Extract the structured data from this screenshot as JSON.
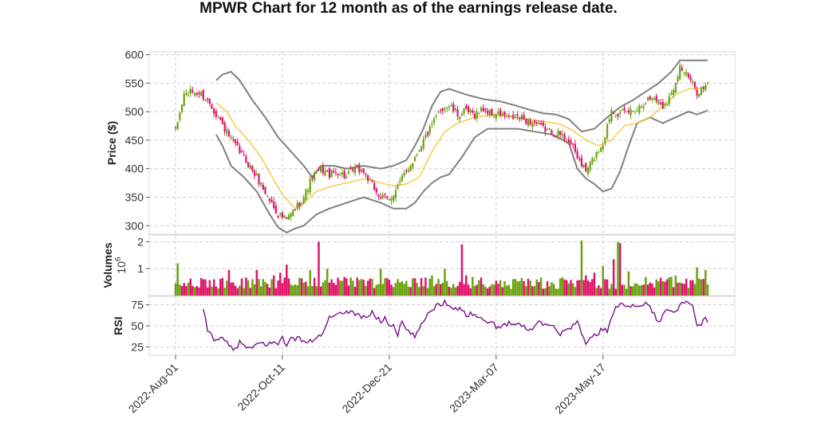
{
  "title": "MPWR Chart for 12 month as of the earnings release date.",
  "colors": {
    "up": "#6aa30f",
    "down": "#e0136b",
    "bollinger": "#808080",
    "sma": "#f4c430",
    "rsi": "#7a0f8c",
    "grid": "#cfcfcf"
  },
  "chart_data": {
    "type": "candlestick",
    "title": "MPWR Chart for 12 month as of the earnings release date.",
    "x_tick_labels": [
      "2022-Aug-01",
      "2022-Oct-11",
      "2022-Dec-21",
      "2023-Mar-07",
      "2023-May-17"
    ],
    "x_tick_indices": [
      0,
      50,
      100,
      150,
      200
    ],
    "num_bars": 250,
    "panels": {
      "price": {
        "ylabel": "Price ($)",
        "ylim": [
          285,
          605
        ],
        "yticks": [
          300,
          350,
          400,
          450,
          500,
          550,
          600
        ],
        "close_anchors": [
          [
            0,
            465
          ],
          [
            4,
            530
          ],
          [
            8,
            535
          ],
          [
            12,
            530
          ],
          [
            16,
            515
          ],
          [
            20,
            490
          ],
          [
            26,
            450
          ],
          [
            32,
            420
          ],
          [
            38,
            385
          ],
          [
            44,
            345
          ],
          [
            48,
            320
          ],
          [
            52,
            310
          ],
          [
            56,
            330
          ],
          [
            60,
            350
          ],
          [
            64,
            385
          ],
          [
            68,
            400
          ],
          [
            72,
            390
          ],
          [
            76,
            395
          ],
          [
            80,
            385
          ],
          [
            84,
            400
          ],
          [
            88,
            395
          ],
          [
            92,
            370
          ],
          [
            96,
            350
          ],
          [
            100,
            345
          ],
          [
            104,
            370
          ],
          [
            108,
            395
          ],
          [
            112,
            420
          ],
          [
            116,
            450
          ],
          [
            120,
            475
          ],
          [
            124,
            505
          ],
          [
            128,
            510
          ],
          [
            132,
            495
          ],
          [
            136,
            500
          ],
          [
            140,
            495
          ],
          [
            144,
            505
          ],
          [
            148,
            495
          ],
          [
            152,
            495
          ],
          [
            156,
            488
          ],
          [
            160,
            490
          ],
          [
            164,
            485
          ],
          [
            168,
            480
          ],
          [
            172,
            470
          ],
          [
            176,
            465
          ],
          [
            180,
            460
          ],
          [
            184,
            450
          ],
          [
            188,
            420
          ],
          [
            192,
            395
          ],
          [
            196,
            420
          ],
          [
            200,
            445
          ],
          [
            204,
            505
          ],
          [
            208,
            495
          ],
          [
            212,
            500
          ],
          [
            216,
            505
          ],
          [
            220,
            520
          ],
          [
            224,
            525
          ],
          [
            228,
            510
          ],
          [
            232,
            530
          ],
          [
            236,
            580
          ],
          [
            240,
            560
          ],
          [
            244,
            535
          ],
          [
            249,
            545
          ]
        ],
        "bollinger_upper": [
          [
            19,
            555
          ],
          [
            22,
            565
          ],
          [
            26,
            570
          ],
          [
            30,
            555
          ],
          [
            36,
            520
          ],
          [
            42,
            490
          ],
          [
            48,
            455
          ],
          [
            54,
            430
          ],
          [
            60,
            405
          ],
          [
            64,
            385
          ],
          [
            68,
            405
          ],
          [
            74,
            405
          ],
          [
            80,
            400
          ],
          [
            88,
            405
          ],
          [
            96,
            400
          ],
          [
            102,
            405
          ],
          [
            108,
            415
          ],
          [
            112,
            440
          ],
          [
            116,
            470
          ],
          [
            120,
            510
          ],
          [
            124,
            535
          ],
          [
            128,
            540
          ],
          [
            136,
            530
          ],
          [
            144,
            522
          ],
          [
            152,
            518
          ],
          [
            158,
            512
          ],
          [
            166,
            503
          ],
          [
            172,
            497
          ],
          [
            178,
            495
          ],
          [
            184,
            487
          ],
          [
            190,
            465
          ],
          [
            196,
            470
          ],
          [
            202,
            490
          ],
          [
            208,
            508
          ],
          [
            214,
            520
          ],
          [
            220,
            535
          ],
          [
            226,
            550
          ],
          [
            232,
            570
          ],
          [
            236,
            590
          ],
          [
            240,
            590
          ],
          [
            244,
            590
          ],
          [
            249,
            590
          ]
        ],
        "bollinger_lower": [
          [
            19,
            460
          ],
          [
            22,
            440
          ],
          [
            26,
            405
          ],
          [
            32,
            385
          ],
          [
            38,
            360
          ],
          [
            44,
            320
          ],
          [
            48,
            297
          ],
          [
            52,
            288
          ],
          [
            56,
            295
          ],
          [
            60,
            300
          ],
          [
            66,
            320
          ],
          [
            72,
            330
          ],
          [
            80,
            340
          ],
          [
            88,
            350
          ],
          [
            96,
            340
          ],
          [
            102,
            330
          ],
          [
            108,
            330
          ],
          [
            112,
            340
          ],
          [
            116,
            360
          ],
          [
            120,
            375
          ],
          [
            124,
            385
          ],
          [
            128,
            390
          ],
          [
            134,
            420
          ],
          [
            140,
            455
          ],
          [
            146,
            470
          ],
          [
            152,
            470
          ],
          [
            160,
            470
          ],
          [
            168,
            465
          ],
          [
            176,
            460
          ],
          [
            184,
            445
          ],
          [
            188,
            400
          ],
          [
            192,
            383
          ],
          [
            196,
            373
          ],
          [
            200,
            360
          ],
          [
            204,
            365
          ],
          [
            208,
            395
          ],
          [
            212,
            440
          ],
          [
            216,
            480
          ],
          [
            222,
            490
          ],
          [
            228,
            480
          ],
          [
            234,
            490
          ],
          [
            240,
            500
          ],
          [
            244,
            495
          ],
          [
            249,
            502
          ]
        ],
        "sma20": [
          [
            19,
            515
          ],
          [
            24,
            500
          ],
          [
            28,
            475
          ],
          [
            34,
            450
          ],
          [
            40,
            420
          ],
          [
            46,
            380
          ],
          [
            50,
            355
          ],
          [
            56,
            330
          ],
          [
            60,
            340
          ],
          [
            66,
            360
          ],
          [
            72,
            368
          ],
          [
            80,
            375
          ],
          [
            88,
            382
          ],
          [
            96,
            375
          ],
          [
            102,
            370
          ],
          [
            108,
            373
          ],
          [
            114,
            385
          ],
          [
            120,
            430
          ],
          [
            126,
            465
          ],
          [
            132,
            480
          ],
          [
            140,
            490
          ],
          [
            148,
            495
          ],
          [
            156,
            492
          ],
          [
            164,
            487
          ],
          [
            172,
            483
          ],
          [
            180,
            478
          ],
          [
            186,
            467
          ],
          [
            192,
            450
          ],
          [
            198,
            440
          ],
          [
            204,
            450
          ],
          [
            210,
            475
          ],
          [
            216,
            480
          ],
          [
            222,
            490
          ],
          [
            228,
            510
          ],
          [
            234,
            530
          ],
          [
            240,
            540
          ],
          [
            244,
            540
          ],
          [
            249,
            545
          ]
        ]
      },
      "volume": {
        "ylabel": "Volumes",
        "yunit": "10^6",
        "ylim": [
          0,
          2.25
        ],
        "yticks": [
          1,
          2
        ],
        "baseline": 0.25,
        "spikes": [
          [
            1,
            1.2
          ],
          [
            25,
            0.95
          ],
          [
            38,
            0.95
          ],
          [
            46,
            0.75
          ],
          [
            49,
            0.85
          ],
          [
            52,
            1.15
          ],
          [
            63,
            0.95
          ],
          [
            67,
            2.0
          ],
          [
            71,
            1.0
          ],
          [
            78,
            0.55
          ],
          [
            90,
            0.55
          ],
          [
            96,
            1.0
          ],
          [
            98,
            0.65
          ],
          [
            120,
            0.75
          ],
          [
            126,
            1.0
          ],
          [
            134,
            1.9
          ],
          [
            136,
            0.75
          ],
          [
            150,
            0.55
          ],
          [
            190,
            2.05
          ],
          [
            192,
            0.75
          ],
          [
            196,
            0.85
          ],
          [
            200,
            1.1
          ],
          [
            205,
            1.35
          ],
          [
            207,
            2.0
          ],
          [
            208,
            1.95
          ],
          [
            212,
            0.9
          ],
          [
            225,
            0.6
          ],
          [
            234,
            0.75
          ],
          [
            244,
            1.05
          ],
          [
            246,
            0.6
          ],
          [
            248,
            0.95
          ]
        ]
      },
      "rsi": {
        "ylabel": "RSI",
        "ylim": [
          15,
          85
        ],
        "yticks": [
          25,
          50,
          75
        ],
        "anchors": [
          [
            13,
            68
          ],
          [
            15,
            45
          ],
          [
            18,
            35
          ],
          [
            21,
            35
          ],
          [
            24,
            30
          ],
          [
            27,
            20
          ],
          [
            30,
            30
          ],
          [
            33,
            25
          ],
          [
            36,
            22
          ],
          [
            39,
            30
          ],
          [
            42,
            28
          ],
          [
            45,
            30
          ],
          [
            48,
            28
          ],
          [
            50,
            40
          ],
          [
            52,
            25
          ],
          [
            54,
            35
          ],
          [
            58,
            35
          ],
          [
            62,
            30
          ],
          [
            66,
            35
          ],
          [
            70,
            45
          ],
          [
            72,
            60
          ],
          [
            76,
            62
          ],
          [
            80,
            68
          ],
          [
            84,
            65
          ],
          [
            88,
            60
          ],
          [
            92,
            65
          ],
          [
            96,
            55
          ],
          [
            98,
            60
          ],
          [
            100,
            50
          ],
          [
            102,
            52
          ],
          [
            104,
            40
          ],
          [
            106,
            55
          ],
          [
            108,
            45
          ],
          [
            110,
            40
          ],
          [
            112,
            38
          ],
          [
            114,
            45
          ],
          [
            118,
            65
          ],
          [
            122,
            74
          ],
          [
            126,
            78
          ],
          [
            130,
            72
          ],
          [
            134,
            70
          ],
          [
            136,
            62
          ],
          [
            140,
            65
          ],
          [
            144,
            58
          ],
          [
            146,
            52
          ],
          [
            148,
            58
          ],
          [
            150,
            45
          ],
          [
            154,
            52
          ],
          [
            158,
            55
          ],
          [
            162,
            50
          ],
          [
            166,
            45
          ],
          [
            170,
            55
          ],
          [
            174,
            52
          ],
          [
            178,
            48
          ],
          [
            180,
            40
          ],
          [
            184,
            47
          ],
          [
            188,
            55
          ],
          [
            190,
            40
          ],
          [
            192,
            30
          ],
          [
            196,
            38
          ],
          [
            200,
            47
          ],
          [
            202,
            45
          ],
          [
            206,
            70
          ],
          [
            208,
            78
          ],
          [
            212,
            75
          ],
          [
            216,
            72
          ],
          [
            220,
            78
          ],
          [
            224,
            65
          ],
          [
            226,
            52
          ],
          [
            230,
            72
          ],
          [
            234,
            68
          ],
          [
            238,
            78
          ],
          [
            242,
            72
          ],
          [
            244,
            50
          ],
          [
            246,
            52
          ],
          [
            248,
            58
          ],
          [
            249,
            55
          ]
        ]
      }
    }
  }
}
